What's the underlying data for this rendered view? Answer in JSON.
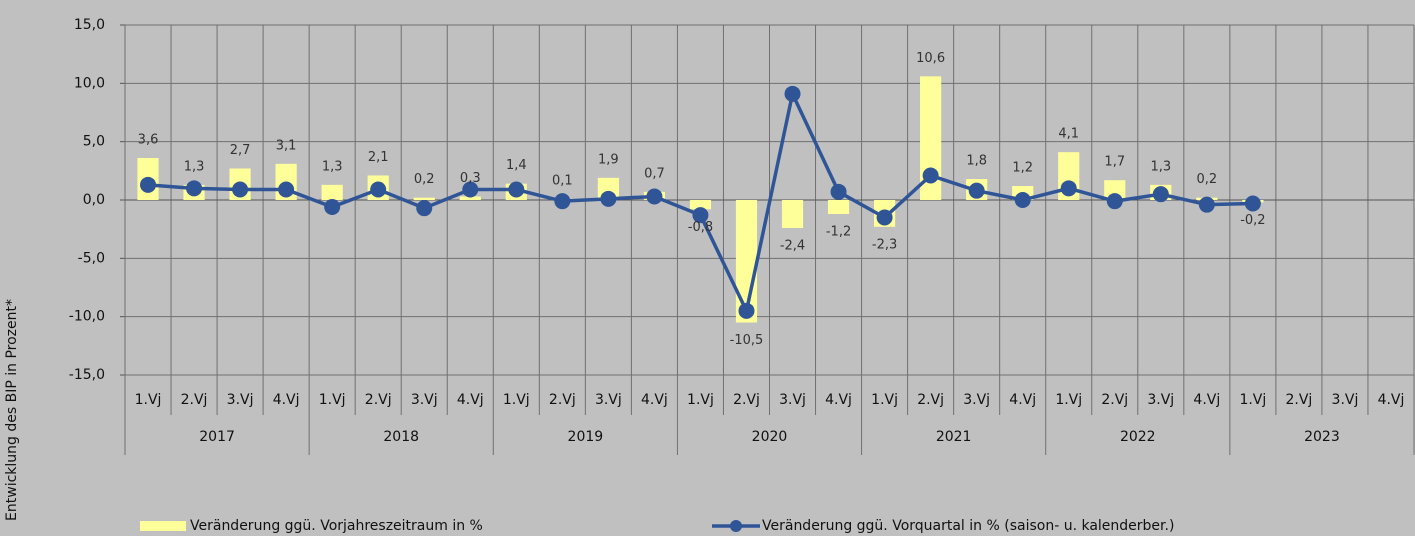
{
  "chart_data": {
    "type": "bar-line",
    "y_label": "Entwicklung des BIP in Prozent*",
    "categories": [
      "1.Vj",
      "2.Vj",
      "3.Vj",
      "4.Vj",
      "1.Vj",
      "2.Vj",
      "3.Vj",
      "4.Vj",
      "1.Vj",
      "2.Vj",
      "3.Vj",
      "4.Vj",
      "1.Vj",
      "2.Vj",
      "3.Vj",
      "4.Vj",
      "1.Vj",
      "2.Vj",
      "3.Vj",
      "4.Vj",
      "1.Vj",
      "2.Vj",
      "3.Vj",
      "4.Vj",
      "1.Vj",
      "2.Vj",
      "3.Vj",
      "4.Vj"
    ],
    "years": [
      "2017",
      "2018",
      "2019",
      "2020",
      "2021",
      "2022",
      "2023"
    ],
    "ylim": [
      -15,
      15
    ],
    "yticks": [
      {
        "value": -15,
        "label": "-15,0"
      },
      {
        "value": -10,
        "label": "-10,0"
      },
      {
        "value": -5,
        "label": "-5,0"
      },
      {
        "value": 0,
        "label": "0,0"
      },
      {
        "value": 5,
        "label": "5,0"
      },
      {
        "value": 10,
        "label": "10,0"
      },
      {
        "value": 15,
        "label": "15,0"
      }
    ],
    "grid": true,
    "series": [
      {
        "name": "Veränderung ggü. Vorjahreszeitraum in %",
        "type": "bar",
        "color": "#ffff99",
        "values": [
          3.6,
          1.3,
          2.7,
          3.1,
          1.3,
          2.1,
          0.2,
          0.3,
          1.4,
          0.1,
          1.9,
          0.7,
          -0.8,
          -10.5,
          -2.4,
          -1.2,
          -2.3,
          10.6,
          1.8,
          1.2,
          4.1,
          1.7,
          1.3,
          0.2,
          -0.2,
          null,
          null,
          null
        ],
        "value_labels": [
          "3,6",
          "1,3",
          "2,7",
          "3,1",
          "1,3",
          "2,1",
          "0,2",
          "0,3",
          "1,4",
          "0,1",
          "1,9",
          "0,7",
          "-0,8",
          "-10,5",
          "-2,4",
          "-1,2",
          "-2,3",
          "10,6",
          "1,8",
          "1,2",
          "4,1",
          "1,7",
          "1,3",
          "0,2",
          "-0,2",
          null,
          null,
          null
        ]
      },
      {
        "name": "Veränderung ggü. Vorquartal in % (saison- u. kalenderber.)",
        "type": "line",
        "color": "#2f5597",
        "values": [
          1.3,
          1.0,
          0.9,
          0.9,
          -0.6,
          0.9,
          -0.7,
          0.9,
          0.9,
          -0.1,
          0.1,
          0.3,
          -1.3,
          -9.5,
          9.1,
          0.7,
          -1.5,
          2.1,
          0.8,
          0.0,
          1.0,
          -0.1,
          0.5,
          -0.4,
          -0.3,
          null,
          null,
          null
        ]
      }
    ]
  }
}
